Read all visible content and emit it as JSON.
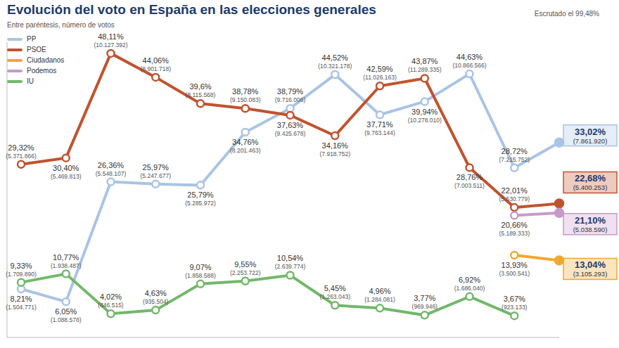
{
  "chart_data": {
    "type": "line",
    "title": "Evolución del voto en España en las elecciones generales",
    "subtitle": "Entre paréntesis, número de votos",
    "annotation": "Escrutado el 99,48%",
    "categories": [
      null,
      null,
      null,
      null,
      null,
      null,
      null,
      null,
      null,
      null,
      null,
      null,
      null
    ],
    "ylim": [
      0,
      50
    ],
    "grid": false,
    "legend": "upper left",
    "data_labels": true,
    "tick_labels": false,
    "series": [
      {
        "name": "PP",
        "color": "#a9c4e4",
        "marker": "circle",
        "values": [
          8.21,
          6.05,
          26.36,
          25.97,
          25.79,
          34.76,
          38.79,
          44.52,
          37.71,
          39.94,
          44.63,
          28.72,
          33.02
        ],
        "value_labels": [
          "8,21%",
          "6,05%",
          "26,36%",
          "25,97%",
          "25,79%",
          "34,76%",
          "38,79%",
          "44,52%",
          "37,71%",
          "39,94%",
          "44,63%",
          "28,72%",
          "33,02%"
        ],
        "vote_labels": [
          "(1.504.771)",
          "(1.088.578)",
          "(5.548.107)",
          "(5.247.677)",
          "(5.285.972)",
          "(8.201.463)",
          "(9.716.006)",
          "(10.321.178)",
          "(9.763.144)",
          "(10.278.010)",
          "(10.866.566)",
          "(7.215.752)",
          "(7.861.920)"
        ]
      },
      {
        "name": "PSOE",
        "color": "#c0532f",
        "marker": "circle",
        "values": [
          29.32,
          30.4,
          48.11,
          44.06,
          39.6,
          38.78,
          37.63,
          34.16,
          42.59,
          43.87,
          28.76,
          22.01,
          22.68
        ],
        "value_labels": [
          "29,32%",
          "30,40%",
          "48,11%",
          "44,06%",
          "39,6%",
          "38,78%",
          "37,63%",
          "34,16%",
          "42,59%",
          "43,87%",
          "28,76%",
          "22,01%",
          "22,68%"
        ],
        "vote_labels": [
          "(5.371.866)",
          "(5.469.813)",
          "(10.127.392)",
          "(8.901.718)",
          "(8.115.568)",
          "(9.150.083)",
          "(9.425.678)",
          "(7.918.752)",
          "(11.026.163)",
          "(11.289.335)",
          "(7.003.511)",
          "(5.530.779)",
          "(5.400.253)"
        ]
      },
      {
        "name": "Ciudadanos",
        "color": "#f0a830",
        "marker": "circle",
        "values": [
          null,
          null,
          null,
          null,
          null,
          null,
          null,
          null,
          null,
          null,
          null,
          13.93,
          13.04
        ],
        "value_labels": [
          null,
          null,
          null,
          null,
          null,
          null,
          null,
          null,
          null,
          null,
          null,
          "13,93%",
          "13,04%"
        ],
        "vote_labels": [
          null,
          null,
          null,
          null,
          null,
          null,
          null,
          null,
          null,
          null,
          null,
          "(3.500.541)",
          "(3.105.293)"
        ]
      },
      {
        "name": "Podemos",
        "color": "#c99ac9",
        "marker": "circle",
        "values": [
          null,
          null,
          null,
          null,
          null,
          null,
          null,
          null,
          null,
          null,
          null,
          20.66,
          21.1
        ],
        "value_labels": [
          null,
          null,
          null,
          null,
          null,
          null,
          null,
          null,
          null,
          null,
          null,
          "20,66%",
          "21,10%"
        ],
        "vote_labels": [
          null,
          null,
          null,
          null,
          null,
          null,
          null,
          null,
          null,
          null,
          null,
          "(5.189.333)",
          "(5.038.590)"
        ]
      },
      {
        "name": "IU",
        "color": "#72b86a",
        "marker": "circle",
        "values": [
          9.33,
          10.77,
          4.02,
          4.63,
          9.07,
          9.55,
          10.54,
          5.45,
          4.96,
          3.77,
          6.92,
          3.67,
          null
        ],
        "value_labels": [
          "9,33%",
          "10,77%",
          "4,02%",
          "4,63%",
          "9,07%",
          "9,55%",
          "10,54%",
          "5,45%",
          "4,96%",
          "3,77%",
          "6,92%",
          "3,67%",
          null
        ],
        "vote_labels": [
          "(1.709.890)",
          "(1.938.487)",
          "(846.515)",
          "(935.504)",
          "(1.858.588)",
          "(2.253.722)",
          "(2.639.774)",
          "(1.263.043)",
          "(1.284.081)",
          "(969.946)",
          "(1.686.040)",
          "(923.133)",
          null
        ]
      }
    ]
  }
}
